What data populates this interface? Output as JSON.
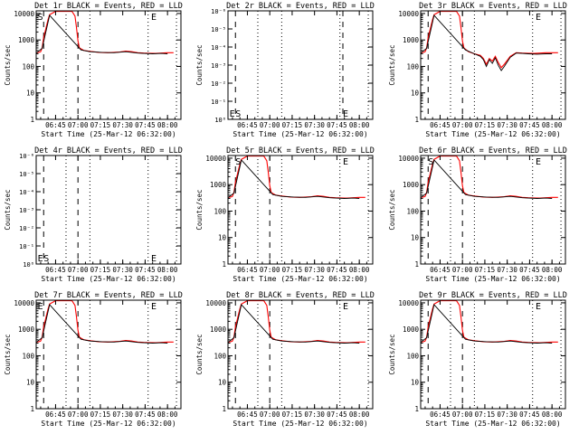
{
  "chart_data": {
    "type": "line",
    "figure": "RHESSI detector count rates, 3x3 grid of panels",
    "legend": {
      "black": "Events",
      "red": "LLD"
    },
    "xlabel": "Start Time (25-Mar-12 06:32:00)",
    "ylabel": "Counts/sec",
    "x_ticks": [
      "06:45",
      "07:00",
      "07:15",
      "07:30",
      "07:45",
      "08:00"
    ],
    "x_tick_minutes": [
      13,
      28,
      43,
      58,
      73,
      88
    ],
    "x_range_minutes": [
      0,
      97
    ],
    "dotted_minutes": [
      20,
      36,
      75,
      94
    ],
    "normal_y_ticks": [
      "10",
      "100",
      "1000",
      "10000"
    ],
    "normal_y_range_log10": [
      0,
      4.1
    ],
    "empty_y_ticks": [
      "10⁰",
      "10⁻¹",
      "10⁻²",
      "10⁻³",
      "10⁻⁴",
      "10⁻⁵",
      "10⁻⁶"
    ],
    "empty_y_range_log10": [
      0,
      6
    ],
    "panels": [
      {
        "title": "Det 1r BLACK = Events, RED = LLD",
        "empty": false,
        "markers": [
          {
            "label": "S",
            "minute": 1
          },
          {
            "label": "E",
            "minute": 77
          }
        ],
        "dashed_minutes": [
          5,
          28
        ],
        "series": [
          {
            "name": "LLD",
            "color": "#ff0000",
            "x": [
              0,
              2,
              3,
              4,
              5,
              7,
              8,
              9,
              13,
              18,
              20,
              24,
              26,
              27,
              28,
              29,
              32,
              36,
              42,
              48,
              52,
              56,
              60,
              64,
              68,
              72,
              76,
              80,
              84,
              88,
              92
            ],
            "y": [
              330,
              340,
              360,
              500,
              1200,
              3500,
              6000,
              9000,
              12000,
              12000,
              12000,
              12000,
              8000,
              3000,
              900,
              500,
              400,
              370,
              340,
              330,
              340,
              350,
              380,
              360,
              330,
              320,
              315,
              310,
              320,
              330,
              330
            ]
          },
          {
            "name": "Events",
            "color": "#000000",
            "x": [
              0,
              4,
              9,
              30,
              36,
              44,
              52,
              60,
              64,
              68,
              72,
              78,
              84,
              88
            ],
            "y": [
              320,
              480,
              8500,
              420,
              360,
              340,
              330,
              360,
              340,
              320,
              310,
              300,
              310,
              300
            ]
          }
        ]
      },
      {
        "title": "Det 2r BLACK = Events, RED = LLD",
        "empty": true,
        "markers": [
          {
            "label": "E",
            "minute": 1
          },
          {
            "label": "S",
            "minute": 5
          },
          {
            "label": "E",
            "minute": 77
          }
        ],
        "dashed_minutes": [
          5,
          77
        ],
        "series": []
      },
      {
        "title": "Det 3r BLACK = Events, RED = LLD",
        "empty": false,
        "markers": [
          {
            "label": "E",
            "minute": 77
          }
        ],
        "dashed_minutes": [
          5,
          28
        ],
        "series": [
          {
            "name": "LLD",
            "color": "#ff0000",
            "x": [
              0,
              2,
              3,
              4,
              5,
              7,
              8,
              9,
              13,
              18,
              20,
              24,
              26,
              27,
              28,
              29,
              32,
              36,
              40,
              42,
              44,
              46,
              48,
              50,
              52,
              54,
              56,
              60,
              64,
              68,
              72,
              76,
              80,
              84,
              88,
              92
            ],
            "y": [
              330,
              340,
              360,
              500,
              1200,
              3500,
              6000,
              9000,
              12000,
              12000,
              12000,
              12000,
              8000,
              3000,
              900,
              500,
              360,
              300,
              260,
              200,
              120,
              200,
              160,
              240,
              140,
              90,
              120,
              240,
              330,
              320,
              315,
              310,
              320,
              330,
              330,
              330
            ]
          },
          {
            "name": "Events",
            "color": "#000000",
            "x": [
              0,
              4,
              9,
              30,
              36,
              40,
              42,
              44,
              46,
              48,
              50,
              52,
              54,
              56,
              60,
              64,
              68,
              72,
              78,
              84,
              88
            ],
            "y": [
              320,
              480,
              8500,
              420,
              300,
              240,
              180,
              100,
              180,
              130,
              210,
              110,
              70,
              100,
              220,
              320,
              310,
              300,
              290,
              300,
              300
            ]
          }
        ]
      },
      {
        "title": "Det 4r BLACK = Events, RED = LLD",
        "empty": true,
        "markers": [
          {
            "label": "E",
            "minute": 1
          },
          {
            "label": "S",
            "minute": 5
          },
          {
            "label": "E",
            "minute": 77
          }
        ],
        "dashed_minutes": [
          5,
          28
        ],
        "series": []
      },
      {
        "title": "Det 5r BLACK = Events, RED = LLD",
        "empty": false,
        "markers": [
          {
            "label": "S",
            "minute": 5
          },
          {
            "label": "E",
            "minute": 77
          }
        ],
        "dashed_minutes": [
          5,
          28
        ],
        "series": [
          {
            "name": "LLD",
            "color": "#ff0000",
            "x": [
              0,
              2,
              3,
              4,
              5,
              7,
              8,
              9,
              13,
              18,
              20,
              24,
              26,
              27,
              28,
              29,
              32,
              36,
              42,
              48,
              52,
              56,
              60,
              64,
              68,
              72,
              76,
              80,
              84,
              88,
              92
            ],
            "y": [
              330,
              340,
              360,
              500,
              1200,
              3500,
              6000,
              9000,
              12000,
              12000,
              12000,
              12000,
              8000,
              3000,
              900,
              500,
              400,
              370,
              340,
              330,
              340,
              350,
              380,
              360,
              330,
              320,
              315,
              310,
              320,
              330,
              330
            ]
          },
          {
            "name": "Events",
            "color": "#000000",
            "x": [
              0,
              4,
              9,
              30,
              36,
              44,
              52,
              60,
              64,
              68,
              72,
              78,
              84,
              88
            ],
            "y": [
              320,
              480,
              8500,
              420,
              360,
              340,
              330,
              360,
              340,
              320,
              310,
              300,
              310,
              300
            ]
          }
        ]
      },
      {
        "title": "Det 6r BLACK = Events, RED = LLD",
        "empty": false,
        "markers": [
          {
            "label": "S",
            "minute": 5
          },
          {
            "label": "E",
            "minute": 77
          }
        ],
        "dashed_minutes": [
          5,
          28
        ],
        "series": [
          {
            "name": "LLD",
            "color": "#ff0000",
            "x": [
              0,
              2,
              3,
              4,
              5,
              7,
              8,
              9,
              13,
              18,
              20,
              24,
              26,
              27,
              28,
              29,
              32,
              36,
              42,
              48,
              52,
              56,
              60,
              64,
              68,
              72,
              76,
              80,
              84,
              88,
              92
            ],
            "y": [
              330,
              340,
              360,
              500,
              1200,
              3500,
              6000,
              9000,
              12000,
              12000,
              12000,
              12000,
              8000,
              3000,
              900,
              500,
              400,
              370,
              340,
              330,
              340,
              350,
              380,
              360,
              330,
              320,
              315,
              310,
              320,
              330,
              330
            ]
          },
          {
            "name": "Events",
            "color": "#000000",
            "x": [
              0,
              4,
              9,
              30,
              36,
              44,
              52,
              60,
              64,
              68,
              72,
              78,
              84,
              88
            ],
            "y": [
              320,
              480,
              8500,
              420,
              360,
              340,
              330,
              360,
              340,
              320,
              310,
              300,
              310,
              300
            ]
          }
        ]
      },
      {
        "title": "Det 7r BLACK = Events, RED = LLD",
        "empty": false,
        "markers": [
          {
            "label": "E",
            "minute": 1
          },
          {
            "label": "E",
            "minute": 77
          }
        ],
        "dashed_minutes": [
          5,
          28
        ],
        "series": [
          {
            "name": "LLD",
            "color": "#ff0000",
            "x": [
              0,
              2,
              3,
              4,
              5,
              7,
              8,
              9,
              13,
              18,
              20,
              24,
              26,
              27,
              28,
              29,
              32,
              36,
              42,
              48,
              52,
              56,
              60,
              64,
              68,
              72,
              76,
              80,
              84,
              88,
              92
            ],
            "y": [
              330,
              340,
              360,
              500,
              1200,
              3500,
              6000,
              9000,
              12000,
              12000,
              12000,
              12000,
              8000,
              3000,
              900,
              500,
              400,
              370,
              340,
              330,
              340,
              350,
              380,
              360,
              330,
              320,
              315,
              310,
              320,
              330,
              330
            ]
          },
          {
            "name": "Events",
            "color": "#000000",
            "x": [
              0,
              4,
              9,
              30,
              36,
              44,
              52,
              60,
              64,
              68,
              72,
              78,
              84,
              88
            ],
            "y": [
              320,
              480,
              8500,
              420,
              360,
              340,
              330,
              360,
              340,
              320,
              310,
              300,
              310,
              300
            ]
          }
        ]
      },
      {
        "title": "Det 8r BLACK = Events, RED = LLD",
        "empty": false,
        "markers": [
          {
            "label": "E",
            "minute": 77
          }
        ],
        "dashed_minutes": [
          5,
          28
        ],
        "series": [
          {
            "name": "LLD",
            "color": "#ff0000",
            "x": [
              0,
              2,
              3,
              4,
              5,
              7,
              8,
              9,
              13,
              18,
              20,
              24,
              26,
              27,
              28,
              29,
              32,
              36,
              42,
              48,
              52,
              56,
              60,
              64,
              68,
              72,
              76,
              80,
              84,
              88,
              92
            ],
            "y": [
              330,
              340,
              360,
              500,
              1200,
              3500,
              6000,
              9000,
              12000,
              12000,
              12000,
              12000,
              8000,
              3000,
              900,
              500,
              400,
              370,
              340,
              330,
              340,
              350,
              380,
              360,
              330,
              320,
              315,
              310,
              320,
              330,
              330
            ]
          },
          {
            "name": "Events",
            "color": "#000000",
            "x": [
              0,
              4,
              9,
              30,
              36,
              44,
              52,
              60,
              64,
              68,
              72,
              78,
              84,
              88
            ],
            "y": [
              320,
              480,
              8500,
              420,
              360,
              340,
              330,
              360,
              340,
              320,
              310,
              300,
              310,
              300
            ]
          }
        ]
      },
      {
        "title": "Det 9r BLACK = Events, RED = LLD",
        "empty": false,
        "markers": [
          {
            "label": "E",
            "minute": 77
          }
        ],
        "dashed_minutes": [
          5,
          28
        ],
        "series": [
          {
            "name": "LLD",
            "color": "#ff0000",
            "x": [
              0,
              2,
              3,
              4,
              5,
              7,
              8,
              9,
              13,
              18,
              20,
              24,
              26,
              27,
              28,
              29,
              32,
              36,
              42,
              48,
              52,
              56,
              60,
              64,
              68,
              72,
              76,
              80,
              84,
              88,
              92
            ],
            "y": [
              330,
              340,
              360,
              500,
              1200,
              3500,
              6000,
              9000,
              12000,
              12000,
              12000,
              12000,
              8000,
              3000,
              900,
              500,
              400,
              370,
              340,
              330,
              340,
              350,
              380,
              360,
              330,
              320,
              315,
              310,
              320,
              330,
              330
            ]
          },
          {
            "name": "Events",
            "color": "#000000",
            "x": [
              0,
              4,
              9,
              30,
              36,
              44,
              52,
              60,
              64,
              68,
              72,
              78,
              84,
              88
            ],
            "y": [
              320,
              480,
              8500,
              420,
              360,
              340,
              330,
              360,
              340,
              320,
              310,
              300,
              310,
              300
            ]
          }
        ]
      }
    ]
  }
}
